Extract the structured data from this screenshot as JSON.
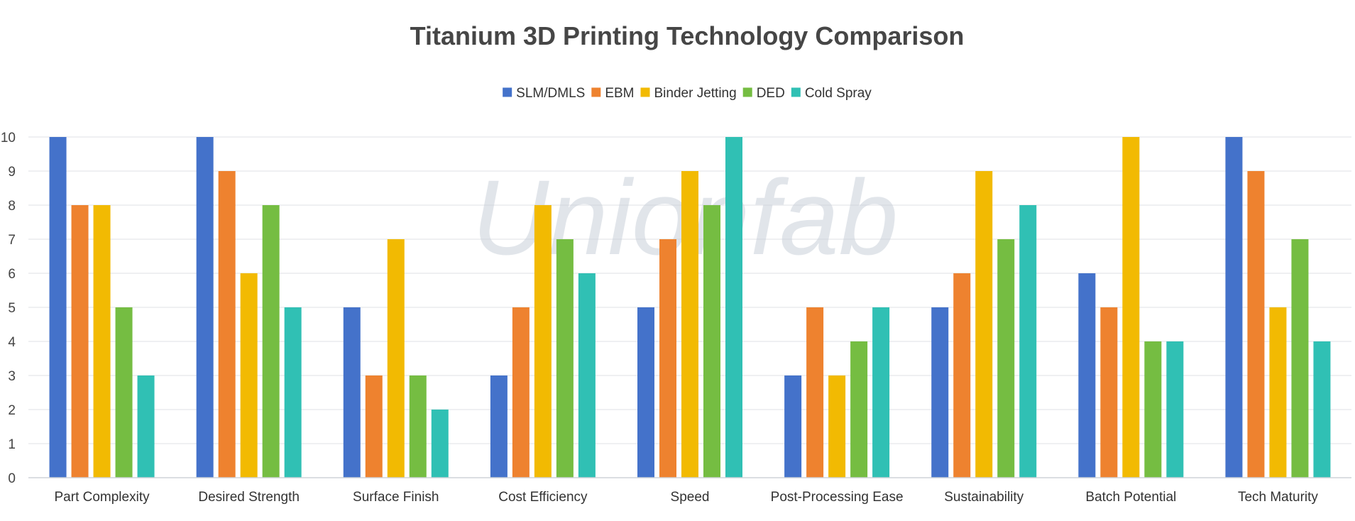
{
  "chart_data": {
    "type": "bar",
    "title": "Titanium 3D Printing Technology Comparison",
    "categories": [
      "Part Complexity",
      "Desired Strength",
      "Surface Finish",
      "Cost Efficiency",
      "Speed",
      "Post-Processing Ease",
      "Sustainability",
      "Batch Potential",
      "Tech Maturity"
    ],
    "series": [
      {
        "name": "SLM/DMLS",
        "color": "#4472ca",
        "values": [
          10,
          10,
          5,
          3,
          5,
          3,
          5,
          6,
          10
        ]
      },
      {
        "name": "EBM",
        "color": "#ee822f",
        "values": [
          8,
          9,
          3,
          5,
          7,
          5,
          6,
          5,
          9
        ]
      },
      {
        "name": "Binder Jetting",
        "color": "#f2ba02",
        "values": [
          8,
          6,
          7,
          8,
          9,
          3,
          9,
          10,
          5
        ]
      },
      {
        "name": "DED",
        "color": "#75bd42",
        "values": [
          5,
          8,
          3,
          7,
          8,
          4,
          7,
          4,
          7
        ]
      },
      {
        "name": "Cold Spray",
        "color": "#30c0b4",
        "values": [
          3,
          5,
          2,
          6,
          10,
          5,
          8,
          4,
          4
        ]
      }
    ],
    "ylim": [
      0,
      10
    ],
    "yticks": [
      0,
      1,
      2,
      3,
      4,
      5,
      6,
      7,
      8,
      9,
      10
    ],
    "xlabel": "",
    "ylabel": "",
    "grid": true,
    "legend_position": "top-center",
    "watermark": "Unionfab"
  }
}
